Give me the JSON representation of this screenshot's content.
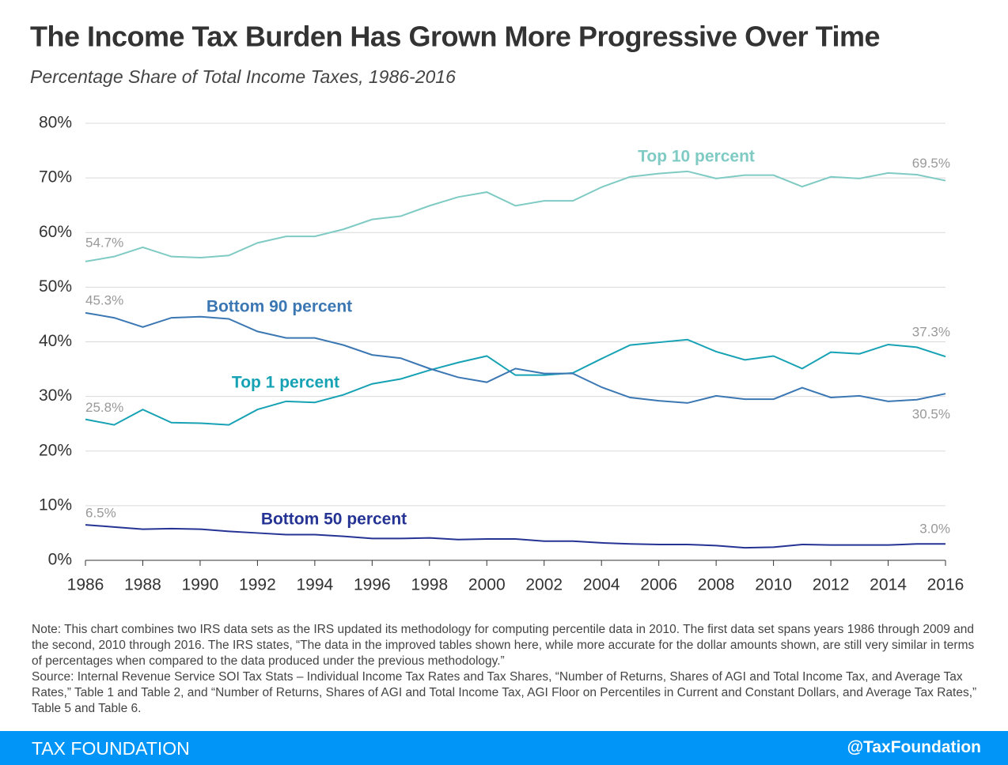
{
  "chart_data": {
    "type": "line",
    "title": "The Income Tax Burden Has Grown More Progressive Over Time",
    "subtitle": "Percentage Share of Total Income Taxes, 1986-2016",
    "x": [
      1986,
      1987,
      1988,
      1989,
      1990,
      1991,
      1992,
      1993,
      1994,
      1995,
      1996,
      1997,
      1998,
      1999,
      2000,
      2001,
      2002,
      2003,
      2004,
      2005,
      2006,
      2007,
      2008,
      2009,
      2010,
      2011,
      2012,
      2013,
      2014,
      2015,
      2016
    ],
    "xlim": [
      1986,
      2016
    ],
    "xticks": [
      1986,
      1988,
      1990,
      1992,
      1994,
      1996,
      1998,
      2000,
      2002,
      2004,
      2006,
      2008,
      2010,
      2012,
      2014,
      2016
    ],
    "ylim": [
      0,
      80
    ],
    "yticks": [
      {
        "value": 0,
        "label": "0%"
      },
      {
        "value": 10,
        "label": "10%"
      },
      {
        "value": 20,
        "label": "20%"
      },
      {
        "value": 30,
        "label": "30%"
      },
      {
        "value": 40,
        "label": "40%"
      },
      {
        "value": 50,
        "label": "50%"
      },
      {
        "value": 60,
        "label": "60%"
      },
      {
        "value": 70,
        "label": "70%"
      },
      {
        "value": 80,
        "label": "80%"
      }
    ],
    "grid": true,
    "series": [
      {
        "name": "Top 10 percent",
        "color": "#7fcbc4",
        "values": [
          54.7,
          55.6,
          57.3,
          55.6,
          55.4,
          55.8,
          58.1,
          59.3,
          59.3,
          60.6,
          62.4,
          63.0,
          64.9,
          66.5,
          67.4,
          64.9,
          65.8,
          65.8,
          68.3,
          70.2,
          70.8,
          71.2,
          69.9,
          70.5,
          70.5,
          68.4,
          70.2,
          69.9,
          70.9,
          70.6,
          69.5
        ],
        "value_labels": [
          "54.7%",
          null,
          null,
          null,
          null,
          null,
          null,
          null,
          null,
          null,
          null,
          null,
          null,
          null,
          null,
          null,
          null,
          null,
          null,
          null,
          null,
          null,
          null,
          null,
          null,
          null,
          null,
          null,
          null,
          null,
          "69.5%"
        ]
      },
      {
        "name": "Top 1 percent",
        "color": "#16a2b4",
        "values": [
          25.8,
          24.8,
          27.6,
          25.2,
          25.1,
          24.8,
          27.6,
          29.1,
          28.9,
          30.3,
          32.3,
          33.2,
          34.8,
          36.2,
          37.4,
          33.9,
          33.9,
          34.3,
          36.9,
          39.4,
          39.9,
          40.4,
          38.2,
          36.7,
          37.4,
          35.1,
          38.1,
          37.8,
          39.5,
          39.0,
          37.3
        ],
        "value_labels": [
          "25.8%",
          null,
          null,
          null,
          null,
          null,
          null,
          null,
          null,
          null,
          null,
          null,
          null,
          null,
          null,
          null,
          null,
          null,
          null,
          null,
          null,
          null,
          null,
          null,
          null,
          null,
          null,
          null,
          null,
          null,
          "37.3%"
        ]
      },
      {
        "name": "Bottom 90 percent",
        "color": "#3b77b3",
        "values": [
          45.3,
          44.4,
          42.7,
          44.4,
          44.6,
          44.2,
          41.9,
          40.7,
          40.7,
          39.4,
          37.6,
          37.0,
          35.1,
          33.5,
          32.6,
          35.1,
          34.2,
          34.2,
          31.7,
          29.8,
          29.2,
          28.8,
          30.1,
          29.5,
          29.5,
          31.6,
          29.8,
          30.1,
          29.1,
          29.4,
          30.5
        ],
        "value_labels": [
          "45.3%",
          null,
          null,
          null,
          null,
          null,
          null,
          null,
          null,
          null,
          null,
          null,
          null,
          null,
          null,
          null,
          null,
          null,
          null,
          null,
          null,
          null,
          null,
          null,
          null,
          null,
          null,
          null,
          null,
          null,
          "30.5%"
        ]
      },
      {
        "name": "Bottom 50 percent",
        "color": "#253494",
        "values": [
          6.5,
          6.1,
          5.7,
          5.8,
          5.7,
          5.3,
          5.0,
          4.7,
          4.7,
          4.4,
          4.0,
          4.0,
          4.1,
          3.8,
          3.9,
          3.9,
          3.5,
          3.5,
          3.2,
          3.0,
          2.9,
          2.9,
          2.7,
          2.3,
          2.4,
          2.9,
          2.8,
          2.8,
          2.8,
          3.0,
          3.0
        ],
        "value_labels": [
          "6.5%",
          null,
          null,
          null,
          null,
          null,
          null,
          null,
          null,
          null,
          null,
          null,
          null,
          null,
          null,
          null,
          null,
          null,
          null,
          null,
          null,
          null,
          null,
          null,
          null,
          null,
          null,
          null,
          null,
          null,
          "3.0%"
        ]
      }
    ]
  },
  "note": "Note: This chart combines two IRS data sets as the IRS updated its methodology for computing percentile data in 2010. The first data set spans years 1986 through 2009 and the second, 2010 through 2016. The IRS states, “The data in the improved tables shown here, while more accurate for the dollar amounts shown, are still very similar in terms of percentages when compared to the data produced under the previous methodology.”",
  "source": "Source: Internal Revenue Service SOI Tax Stats – Individual Income Tax Rates and Tax Shares, “Number of Returns, Shares of AGI and Total Income Tax, and Average Tax Rates,” Table 1 and Table 2, and “Number of Returns, Shares of AGI and Total Income Tax, AGI Floor on Percentiles in Current and Constant Dollars, and Average Tax Rates,” Table 5 and Table 6.",
  "footer": {
    "brand": "TAX FOUNDATION",
    "handle": "@TaxFoundation"
  }
}
